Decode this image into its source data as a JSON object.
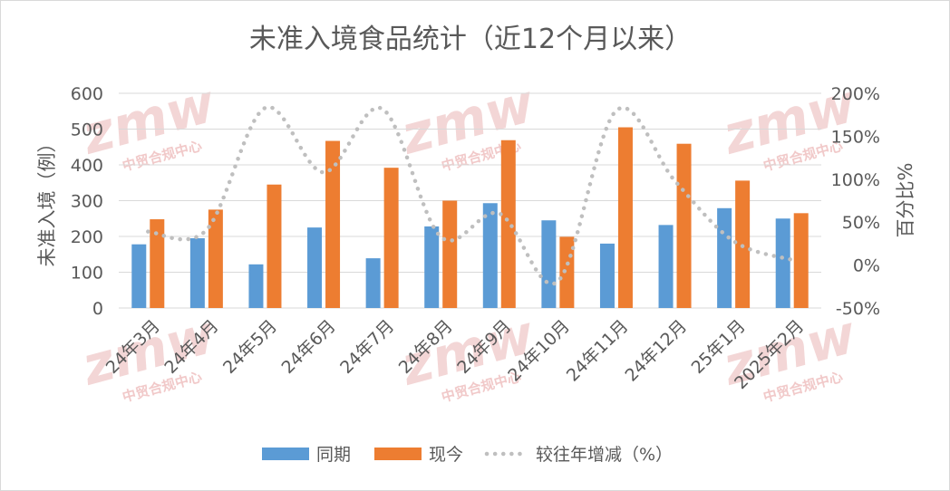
{
  "chart_data": {
    "type": "bar",
    "title": "未准入境食品统计（近12个月以来）",
    "ylabel": "未准入境（例）",
    "y2label": "百分比%",
    "ylim": [
      0,
      600
    ],
    "y_ticks": [
      "0",
      "100",
      "200",
      "300",
      "400",
      "500",
      "600"
    ],
    "y2lim": [
      -50,
      200
    ],
    "y2_ticks": [
      "-50%",
      "0%",
      "50%",
      "100%",
      "150%",
      "200%"
    ],
    "categories": [
      "24年3月",
      "24年4月",
      "24年5月",
      "24年6月",
      "24年7月",
      "24年8月",
      "24年9月",
      "24年10月",
      "24年11月",
      "24年12月",
      "25年1月",
      "2025年2月"
    ],
    "series": [
      {
        "name": "同期",
        "type": "bar",
        "axis": "left",
        "color": "#5b9bd5",
        "values": [
          178,
          195,
          122,
          225,
          139,
          228,
          293,
          245,
          180,
          232,
          279,
          250
        ]
      },
      {
        "name": "现今",
        "type": "bar",
        "axis": "left",
        "color": "#ed7d31",
        "values": [
          248,
          275,
          345,
          467,
          392,
          300,
          469,
          199,
          505,
          459,
          356,
          265
        ]
      },
      {
        "name": "较往年增减（%）",
        "type": "line",
        "axis": "right",
        "color": "#bfbfbf",
        "dashed": true,
        "values": [
          39,
          41,
          183,
          108,
          182,
          33,
          60,
          -19,
          180,
          98,
          28,
          6
        ]
      }
    ],
    "legend_position": "bottom",
    "grid": true
  },
  "watermark": {
    "logo": "zmw",
    "text": "中贸合规中心"
  }
}
